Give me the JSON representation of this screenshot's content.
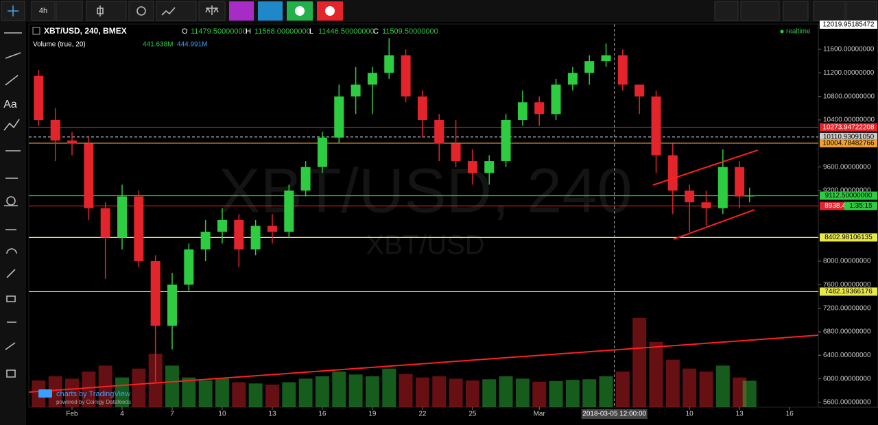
{
  "toolbar": {
    "interval": "4h",
    "text_tool": "Aa"
  },
  "chart_data": {
    "type": "candlestick",
    "title": "XBT/USD, 240, BMEX",
    "ohlc_labels": [
      {
        "key": "O",
        "value": "11479.50000000"
      },
      {
        "key": "H",
        "value": "11568.00000000"
      },
      {
        "key": "L",
        "value": "11446.50000000"
      },
      {
        "key": "C",
        "value": "11509.50000000"
      }
    ],
    "volume_title": "Volume (true, 20)",
    "volume_legend": [
      "441.638M",
      "444.991M"
    ],
    "realtime": "realtime",
    "watermark": "XBT/USD, 240",
    "watermark_sub": "XBT/USD",
    "credit": "charts by TradingView",
    "credit_sub": "powered by Coinigy Datafeeds",
    "crosshair_x": {
      "value": 33.5,
      "label": "2018-03-05 12:00:00"
    },
    "countdown": "1:35:15",
    "up_color": "#2ecc40",
    "down_color": "#e3242b",
    "x": [
      -1,
      0,
      1,
      2,
      3,
      4,
      5,
      6,
      7,
      8,
      9,
      10,
      11,
      12,
      13,
      14,
      15,
      16,
      17,
      18,
      19,
      20,
      21,
      22,
      23,
      24,
      25,
      26,
      27,
      28,
      29,
      30,
      31,
      32,
      33,
      34,
      35,
      36,
      37,
      38,
      39,
      40,
      41,
      41.6
    ],
    "ohlc": [
      [
        11150,
        11250,
        10300,
        10400
      ],
      [
        10400,
        10600,
        9700,
        10050
      ],
      [
        10050,
        10200,
        9800,
        10000
      ],
      [
        10000,
        10100,
        8700,
        8900
      ],
      [
        8900,
        9000,
        7700,
        8400
      ],
      [
        8400,
        9300,
        8200,
        9100
      ],
      [
        9100,
        9200,
        7900,
        8000
      ],
      [
        8000,
        8100,
        5950,
        6900
      ],
      [
        6900,
        7800,
        6500,
        7600
      ],
      [
        7600,
        8300,
        7500,
        8200
      ],
      [
        8200,
        8700,
        8000,
        8500
      ],
      [
        8500,
        8900,
        8300,
        8700
      ],
      [
        8700,
        8800,
        7900,
        8200
      ],
      [
        8200,
        8700,
        8100,
        8600
      ],
      [
        8600,
        8800,
        8300,
        8500
      ],
      [
        8500,
        9300,
        8400,
        9200
      ],
      [
        9200,
        9700,
        9100,
        9600
      ],
      [
        9600,
        10200,
        9500,
        10100
      ],
      [
        10100,
        11000,
        10000,
        10800
      ],
      [
        10800,
        11300,
        10500,
        11000
      ],
      [
        11000,
        11300,
        10500,
        11200
      ],
      [
        11200,
        11790,
        11100,
        11500
      ],
      [
        11500,
        11600,
        10700,
        10800
      ],
      [
        10800,
        10900,
        10100,
        10400
      ],
      [
        10400,
        10500,
        9700,
        10000
      ],
      [
        10000,
        10400,
        9600,
        9700
      ],
      [
        9700,
        9900,
        9300,
        9500
      ],
      [
        9500,
        9800,
        9300,
        9700
      ],
      [
        9700,
        10500,
        9600,
        10400
      ],
      [
        10400,
        10900,
        10300,
        10700
      ],
      [
        10700,
        10800,
        10300,
        10500
      ],
      [
        10500,
        11100,
        10400,
        11000
      ],
      [
        11000,
        11300,
        10900,
        11200
      ],
      [
        11200,
        11500,
        11000,
        11400
      ],
      [
        11400,
        11700,
        11300,
        11500
      ],
      [
        11500,
        11600,
        10900,
        11000
      ],
      [
        11000,
        11000,
        10500,
        10800
      ],
      [
        10800,
        10900,
        9500,
        9800
      ],
      [
        9800,
        10000,
        8800,
        9200
      ],
      [
        9200,
        9300,
        8500,
        9000
      ],
      [
        9000,
        9200,
        8600,
        8900
      ],
      [
        8900,
        9900,
        8800,
        9600
      ],
      [
        9600,
        9700,
        8900,
        9100
      ],
      [
        9100,
        9250,
        9000,
        9112.5
      ]
    ],
    "volume": [
      450,
      520,
      480,
      600,
      700,
      500,
      650,
      900,
      700,
      500,
      450,
      480,
      420,
      400,
      380,
      420,
      480,
      520,
      600,
      550,
      520,
      650,
      560,
      500,
      520,
      480,
      450,
      470,
      520,
      480,
      430,
      440,
      460,
      470,
      520,
      600,
      1500,
      1100,
      800,
      650,
      600,
      700,
      500,
      445
    ],
    "xlim": [
      -1.59,
      45.72
    ],
    "ylim": [
      5518,
      12031
    ],
    "xticks": [
      {
        "value": 1,
        "label": "Feb"
      },
      4,
      7,
      10,
      13,
      16,
      19,
      22,
      25,
      {
        "value": 29,
        "label": "Mar"
      },
      {
        "value": 38,
        "label": "10"
      },
      {
        "value": 41,
        "label": "13"
      },
      {
        "value": 44,
        "label": "16"
      }
    ],
    "yticks": [
      {
        "value": 11600,
        "label": "11600.00000000"
      },
      {
        "value": 11200,
        "label": "11200.00000000"
      },
      {
        "value": 10800,
        "label": "10800.00000000"
      },
      {
        "value": 10400,
        "label": "10400.00000000"
      },
      {
        "value": 9600,
        "label": "9600.00000000"
      },
      {
        "value": 9200,
        "label": "9200.00000000"
      },
      {
        "value": 8000,
        "label": "8000.00000000"
      },
      {
        "value": 7600,
        "label": "7600.00000000"
      },
      {
        "value": 7200,
        "label": "7200.00000000"
      },
      {
        "value": 6800,
        "label": "6800.00000000"
      },
      {
        "value": 6400,
        "label": "6400.00000000"
      },
      {
        "value": 6000,
        "label": "6000.00000000"
      },
      {
        "value": 5600,
        "label": "5600.00000000"
      }
    ],
    "levels": [
      {
        "value": 12019.95185472,
        "label": "12019.95185472",
        "color": "#ffffff",
        "line": false
      },
      {
        "value": 10273.94722208,
        "label": "10273.94722208",
        "color": "#e3242b",
        "line": true
      },
      {
        "value": 10110.9309105,
        "label": "10110.93091050",
        "color": "#cccccc",
        "line": true,
        "style": "dashed"
      },
      {
        "value": 10004.78482766,
        "label": "10004.78482766",
        "color": "#f0a030",
        "line": true
      },
      {
        "value": 9112.5,
        "label": "9112.50000000",
        "color": "#2ecc40",
        "line": true
      },
      {
        "value": 8938.40923292,
        "label": "8938.40923292",
        "color": "#e3242b",
        "line": true
      },
      {
        "value": 8402.98106135,
        "label": "8402.98106135",
        "color": "#e8e84a",
        "line": true
      },
      {
        "value": 7482.19366176,
        "label": "7482.19366176",
        "color": "#e8e84a",
        "line": true
      }
    ],
    "trendlines": [
      {
        "x": [
          -1.59,
          45.72
        ],
        "y": [
          5774,
          6741
        ],
        "color": "#ff2020"
      },
      {
        "x": [
          35.81,
          42.09
        ],
        "y": [
          9293,
          9887
        ],
        "color": "#ff2020"
      },
      {
        "x": [
          37.05,
          41.9
        ],
        "y": [
          8373,
          8874
        ],
        "color": "#ff2020"
      }
    ]
  }
}
